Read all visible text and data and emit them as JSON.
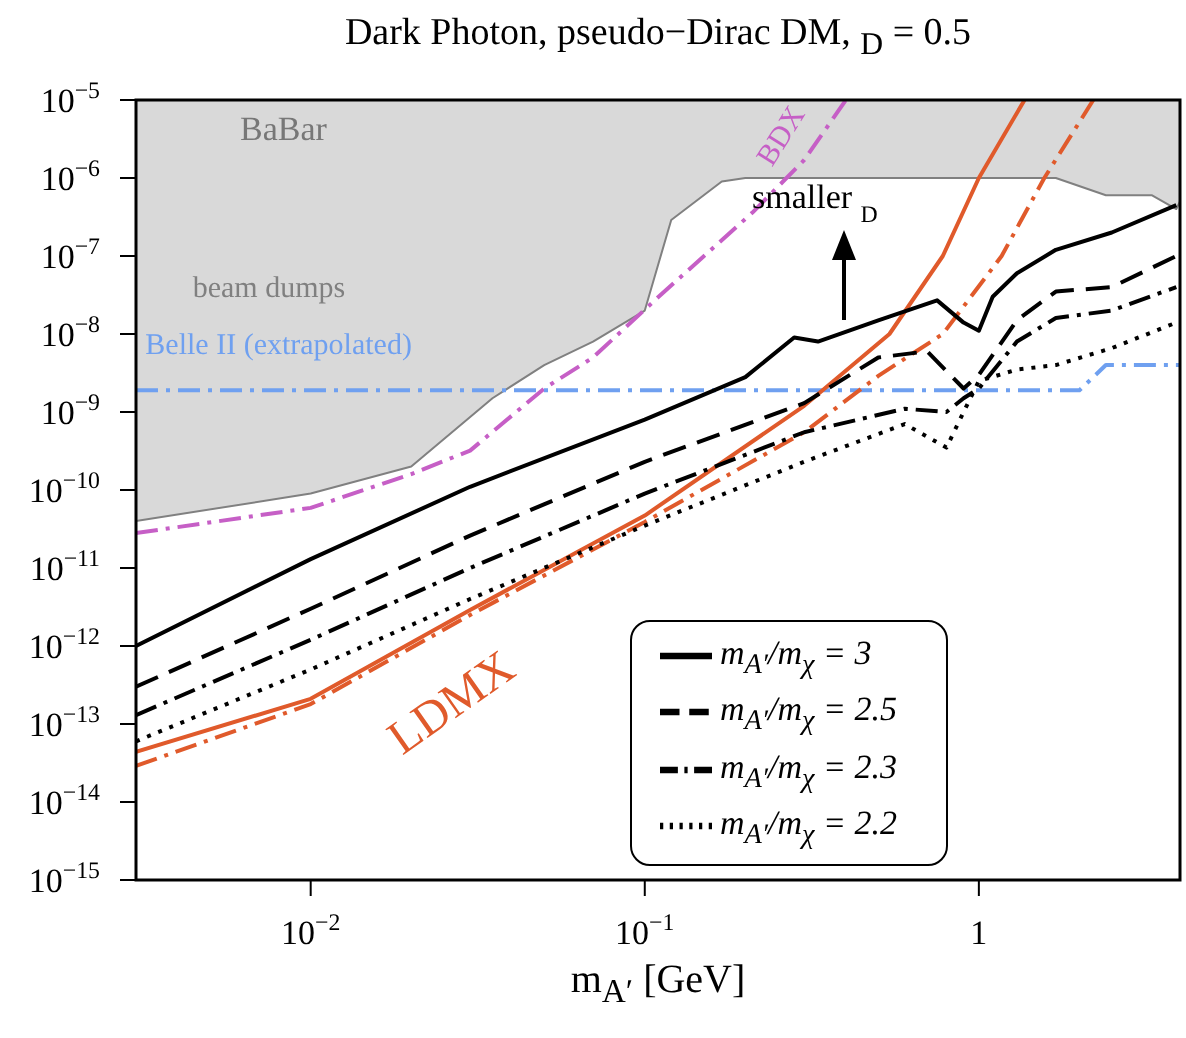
{
  "chart_data": {
    "type": "line",
    "title": "Dark Photon, pseudo−Dirac DM,  $_{D}$ = 0.5",
    "xlabel": "m$_{A′}$  [GeV]",
    "log": "xy",
    "legend": "bottom right",
    "xlim": [
      0.003,
      4
    ],
    "ylim": [
      1e-15,
      1e-05
    ],
    "xticks": [
      {
        "value": 0.01,
        "label": "10$^{−2}$"
      },
      {
        "value": 0.1,
        "label": "10$^{−1}$"
      },
      1
    ],
    "yticks": [
      {
        "value": 1e-15,
        "label": "10$^{−15}$"
      },
      {
        "value": 1e-14,
        "label": "10$^{−14}$"
      },
      {
        "value": 1e-13,
        "label": "10$^{−13}$"
      },
      {
        "value": 1e-12,
        "label": "10$^{−12}$"
      },
      {
        "value": 1e-11,
        "label": "10$^{−11}$"
      },
      {
        "value": 1e-10,
        "label": "10$^{−10}$"
      },
      {
        "value": 1e-09,
        "label": "10$^{−9}$"
      },
      {
        "value": 1e-08,
        "label": "10$^{−8}$"
      },
      {
        "value": 1e-07,
        "label": "10$^{−7}$"
      },
      {
        "value": 1e-06,
        "label": "10$^{−6}$"
      },
      {
        "value": 1e-05,
        "label": "10$^{−5}$"
      }
    ],
    "annotations": [
      "BaBar",
      "smaller  $_{D}$"
    ],
    "series": [
      {
        "name": "beam dumps",
        "color": "#808080",
        "x": [
          0.003,
          0.01,
          0.02,
          0.035,
          0.05,
          0.07,
          0.1,
          0.12,
          0.17,
          0.2,
          1.7,
          2.4,
          3.3,
          3.9,
          4
        ],
        "values": [
          4e-11,
          9e-11,
          2e-10,
          1.5e-09,
          4e-09,
          8e-09,
          2e-08,
          2.9e-07,
          9e-07,
          1e-06,
          1e-06,
          6e-07,
          6e-07,
          4e-07,
          5e-07
        ],
        "lower": [
          4e-11,
          9e-11,
          2e-10,
          1.5e-09,
          4e-09,
          8e-09,
          2e-08,
          2.9e-07,
          9e-07,
          1e-06,
          1e-06,
          6e-07,
          6e-07,
          4e-07,
          5e-07
        ],
        "upper": [
          1e-05,
          1e-05,
          1e-05,
          1e-05,
          1e-05,
          1e-05,
          1e-05,
          1e-05,
          1e-05,
          1e-05,
          1e-05,
          1e-05,
          1e-05,
          1e-05,
          1e-05
        ]
      },
      {
        "name": "BDX",
        "color": "#c65fc6",
        "line_style": "dashdot",
        "x": [
          0.003,
          0.01,
          0.02,
          0.03,
          0.05,
          0.07,
          0.11,
          0.21,
          0.3,
          0.4
        ],
        "values": [
          2.8e-11,
          5.9e-11,
          1.6e-10,
          3.2e-10,
          2e-09,
          5e-09,
          3e-08,
          3.6e-07,
          1.7e-06,
          1e-05
        ]
      },
      {
        "name": "Belle II (extrapolated)",
        "color": "#6fa0f0",
        "line_style": "dashdot",
        "x": [
          0.003,
          2.0,
          2.4,
          4
        ],
        "values": [
          1.9e-09,
          1.9e-09,
          4e-09,
          4e-09
        ]
      },
      {
        "name": "LDMX",
        "color": "#e05a2b",
        "line_style": "solid",
        "x": [
          0.003,
          0.01,
          0.03,
          0.1,
          0.3,
          0.54,
          0.78,
          1.0,
          1.37
        ],
        "values": [
          4.4e-14,
          2.1e-13,
          2.9e-12,
          4.7e-11,
          1.2e-09,
          1e-08,
          1e-07,
          1e-06,
          1e-05
        ]
      },
      {
        "color": "#e05a2b",
        "line_style": "dashdot",
        "x": [
          0.003,
          0.01,
          0.03,
          0.1,
          0.3,
          0.5,
          0.78,
          1.17,
          1.57,
          2.2
        ],
        "values": [
          2.9e-14,
          1.8e-13,
          2.5e-12,
          3.9e-11,
          5.5e-10,
          2.9e-09,
          1e-08,
          1e-07,
          1e-06,
          1e-05
        ]
      },
      {
        "name": "m$_{A′}$/m$_{χ}$ = 3",
        "color": "#000000",
        "line_style": "solid",
        "x": [
          0.003,
          0.01,
          0.03,
          0.1,
          0.2,
          0.28,
          0.33,
          0.5,
          0.75,
          0.9,
          1.0,
          1.1,
          1.3,
          1.7,
          2.5,
          3.9
        ],
        "values": [
          1e-12,
          1.3e-11,
          1.1e-10,
          8e-10,
          2.8e-09,
          9e-09,
          8e-09,
          1.5e-08,
          2.7e-08,
          1.4e-08,
          1.1e-08,
          3e-08,
          6e-08,
          1.2e-07,
          2e-07,
          4.5e-07
        ]
      },
      {
        "name": "m$_{A′}$/m$_{χ}$ = 2.5",
        "color": "#000000",
        "line_style": "dashed",
        "x": [
          0.003,
          0.01,
          0.03,
          0.1,
          0.3,
          0.5,
          0.7,
          0.9,
          1.0,
          1.3,
          1.7,
          2.5,
          3.9
        ],
        "values": [
          3e-13,
          3e-12,
          2.6e-11,
          2.3e-10,
          1.3e-09,
          5e-09,
          6e-09,
          2e-09,
          3e-09,
          1.5e-08,
          3.5e-08,
          4e-08,
          1e-07
        ]
      },
      {
        "name": "m$_{A′}$/m$_{χ}$ = 2.3",
        "color": "#000000",
        "line_style": "dashdot",
        "x": [
          0.003,
          0.01,
          0.03,
          0.1,
          0.3,
          0.6,
          0.8,
          0.9,
          1.0,
          1.3,
          1.7,
          2.5,
          3.9
        ],
        "values": [
          1.3e-13,
          1.2e-12,
          1e-11,
          9e-11,
          5.5e-10,
          1.1e-09,
          1e-09,
          1.5e-09,
          2e-09,
          8e-09,
          1.6e-08,
          2e-08,
          4e-08
        ]
      },
      {
        "name": "m$_{A′}$/m$_{χ}$ = 2.2",
        "color": "#000000",
        "line_style": "dotted",
        "x": [
          0.003,
          0.01,
          0.03,
          0.1,
          0.3,
          0.6,
          0.8,
          0.9,
          1.0,
          1.3,
          1.7,
          2.5,
          3.9
        ],
        "values": [
          6e-14,
          5e-13,
          4e-12,
          3.5e-11,
          2.3e-10,
          7e-10,
          3.5e-10,
          1e-09,
          2.5e-09,
          3.5e-09,
          4e-09,
          6.6e-09,
          1.4e-08
        ]
      }
    ]
  }
}
